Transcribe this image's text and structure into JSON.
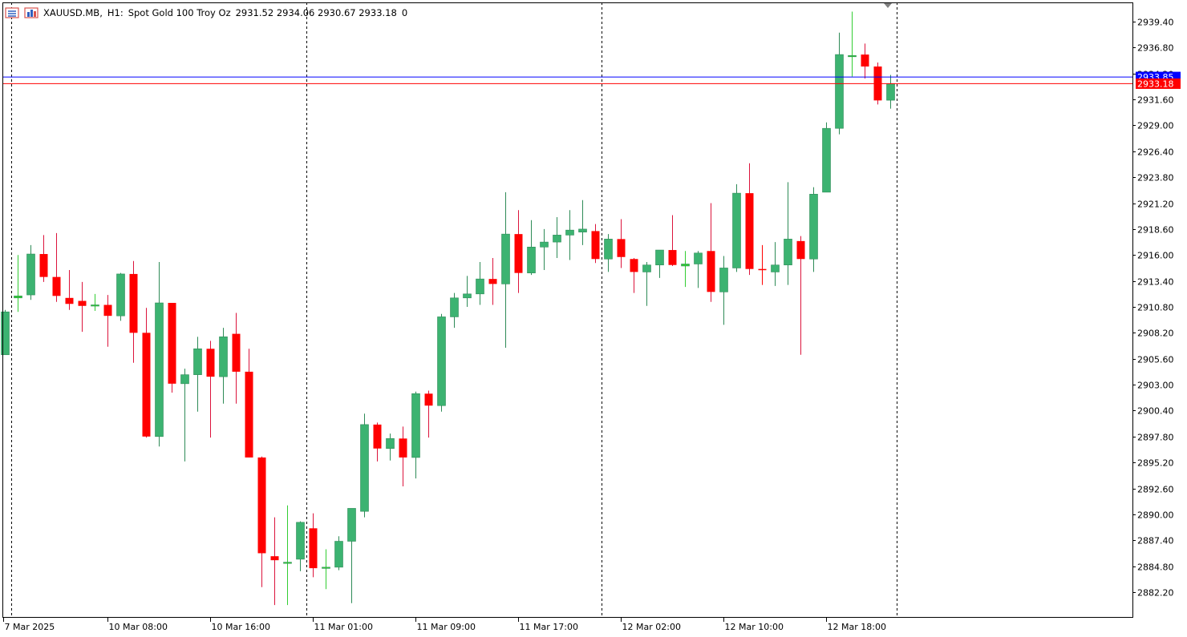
{
  "header": {
    "symbol": "XAUUSD.MB,",
    "timeframe": "H1:",
    "description": "Spot Gold 100 Troy Oz",
    "ohlc": "2931.52 2934.06 2930.67 2933.18",
    "volume": "0",
    "icons": [
      "chart-list-icon",
      "chart-stats-icon"
    ]
  },
  "colors": {
    "bull": "#3cb371",
    "bull_doji": "#32cd32",
    "bear": "#ff0000",
    "wick_bull": "#2e8b57",
    "wick_bear": "#dc143c",
    "bid_line": "#0000ff",
    "last_line": "#ff0000",
    "period_sep": "#000000",
    "axis": "#000000"
  },
  "price_tags": {
    "ask": "2933.85",
    "bid": "2933.18"
  },
  "chart_data": {
    "type": "candlestick",
    "y_range": [
      2880.0,
      2941.0
    ],
    "y_ticks": [
      "2939.40",
      "2936.80",
      "2934.20",
      "2931.60",
      "2929.00",
      "2926.40",
      "2923.80",
      "2921.20",
      "2918.60",
      "2916.00",
      "2913.40",
      "2910.80",
      "2908.20",
      "2905.60",
      "2903.00",
      "2900.40",
      "2897.80",
      "2895.20",
      "2892.60",
      "2890.00",
      "2887.40",
      "2884.80",
      "2882.20"
    ],
    "x_labels": [
      {
        "text": "7 Mar 2025",
        "bar": -0.5
      },
      {
        "text": "10 Mar 08:00",
        "bar": 8
      },
      {
        "text": "10 Mar 16:00",
        "bar": 16
      },
      {
        "text": "11 Mar 01:00",
        "bar": 24
      },
      {
        "text": "11 Mar 09:00",
        "bar": 32
      },
      {
        "text": "11 Mar 17:00",
        "bar": 40
      },
      {
        "text": "12 Mar 02:00",
        "bar": 48
      },
      {
        "text": "12 Mar 10:00",
        "bar": 56
      },
      {
        "text": "12 Mar 18:00",
        "bar": 64
      }
    ],
    "day_separators_bar": [
      0.5,
      23.5,
      46.5,
      69.5
    ],
    "candles": [
      {
        "o": 2906.0,
        "h": 2910.5,
        "l": 2906.0,
        "c": 2910.3
      },
      {
        "o": 2911.7,
        "h": 2916.0,
        "l": 2910.3,
        "c": 2911.9
      },
      {
        "o": 2912.0,
        "h": 2917.0,
        "l": 2911.5,
        "c": 2916.1
      },
      {
        "o": 2916.1,
        "h": 2918.0,
        "l": 2913.3,
        "c": 2913.8
      },
      {
        "o": 2913.8,
        "h": 2918.2,
        "l": 2911.3,
        "c": 2911.9
      },
      {
        "o": 2911.7,
        "h": 2914.5,
        "l": 2910.5,
        "c": 2911.1
      },
      {
        "o": 2911.4,
        "h": 2913.3,
        "l": 2908.3,
        "c": 2910.9
      },
      {
        "o": 2910.9,
        "h": 2912.1,
        "l": 2910.4,
        "c": 2911.0
      },
      {
        "o": 2911.0,
        "h": 2912.0,
        "l": 2906.8,
        "c": 2909.9
      },
      {
        "o": 2909.9,
        "h": 2914.2,
        "l": 2909.4,
        "c": 2914.1
      },
      {
        "o": 2914.1,
        "h": 2915.4,
        "l": 2905.2,
        "c": 2908.2
      },
      {
        "o": 2908.2,
        "h": 2910.7,
        "l": 2897.7,
        "c": 2897.8
      },
      {
        "o": 2897.8,
        "h": 2915.3,
        "l": 2896.8,
        "c": 2911.2
      },
      {
        "o": 2911.2,
        "h": 2911.2,
        "l": 2902.2,
        "c": 2903.1
      },
      {
        "o": 2903.1,
        "h": 2904.6,
        "l": 2895.3,
        "c": 2904.0
      },
      {
        "o": 2904.0,
        "h": 2907.8,
        "l": 2900.3,
        "c": 2906.6
      },
      {
        "o": 2906.6,
        "h": 2907.4,
        "l": 2897.7,
        "c": 2903.8
      },
      {
        "o": 2903.8,
        "h": 2908.7,
        "l": 2901.1,
        "c": 2907.8
      },
      {
        "o": 2908.1,
        "h": 2910.2,
        "l": 2901.1,
        "c": 2904.3
      },
      {
        "o": 2904.3,
        "h": 2906.6,
        "l": 2895.7,
        "c": 2895.7
      },
      {
        "o": 2895.7,
        "h": 2895.8,
        "l": 2882.7,
        "c": 2886.1
      },
      {
        "o": 2885.8,
        "h": 2889.7,
        "l": 2880.9,
        "c": 2885.4
      },
      {
        "o": 2885.1,
        "h": 2890.9,
        "l": 2880.9,
        "c": 2885.2
      },
      {
        "o": 2885.5,
        "h": 2889.3,
        "l": 2884.3,
        "c": 2889.2
      },
      {
        "o": 2888.6,
        "h": 2890.1,
        "l": 2883.7,
        "c": 2884.6
      },
      {
        "o": 2884.6,
        "h": 2886.5,
        "l": 2882.5,
        "c": 2884.7
      },
      {
        "o": 2884.7,
        "h": 2887.8,
        "l": 2884.4,
        "c": 2887.3
      },
      {
        "o": 2887.3,
        "h": 2890.3,
        "l": 2881.1,
        "c": 2890.6
      },
      {
        "o": 2890.3,
        "h": 2900.1,
        "l": 2889.7,
        "c": 2899.0
      },
      {
        "o": 2899.0,
        "h": 2899.2,
        "l": 2895.3,
        "c": 2896.6
      },
      {
        "o": 2896.6,
        "h": 2898.1,
        "l": 2895.4,
        "c": 2897.6
      },
      {
        "o": 2897.6,
        "h": 2898.8,
        "l": 2892.8,
        "c": 2895.7
      },
      {
        "o": 2895.7,
        "h": 2902.3,
        "l": 2893.6,
        "c": 2902.1
      },
      {
        "o": 2902.1,
        "h": 2902.4,
        "l": 2897.7,
        "c": 2900.9
      },
      {
        "o": 2900.9,
        "h": 2910.1,
        "l": 2900.3,
        "c": 2909.8
      },
      {
        "o": 2909.8,
        "h": 2912.2,
        "l": 2908.7,
        "c": 2911.7
      },
      {
        "o": 2911.7,
        "h": 2913.9,
        "l": 2910.8,
        "c": 2912.1
      },
      {
        "o": 2912.1,
        "h": 2915.3,
        "l": 2911.0,
        "c": 2913.6
      },
      {
        "o": 2913.6,
        "h": 2915.7,
        "l": 2911.0,
        "c": 2913.1
      },
      {
        "o": 2913.1,
        "h": 2922.3,
        "l": 2906.7,
        "c": 2918.1
      },
      {
        "o": 2918.1,
        "h": 2920.5,
        "l": 2912.2,
        "c": 2914.2
      },
      {
        "o": 2914.2,
        "h": 2919.5,
        "l": 2914.0,
        "c": 2916.8
      },
      {
        "o": 2916.8,
        "h": 2918.6,
        "l": 2914.5,
        "c": 2917.3
      },
      {
        "o": 2917.3,
        "h": 2919.8,
        "l": 2915.7,
        "c": 2918.0
      },
      {
        "o": 2918.0,
        "h": 2920.5,
        "l": 2915.5,
        "c": 2918.5
      },
      {
        "o": 2918.3,
        "h": 2921.5,
        "l": 2917.0,
        "c": 2918.6
      },
      {
        "o": 2918.4,
        "h": 2919.1,
        "l": 2915.2,
        "c": 2915.6
      },
      {
        "o": 2915.6,
        "h": 2918.1,
        "l": 2914.3,
        "c": 2917.6
      },
      {
        "o": 2917.6,
        "h": 2919.6,
        "l": 2914.7,
        "c": 2915.8
      },
      {
        "o": 2915.6,
        "h": 2915.7,
        "l": 2912.2,
        "c": 2914.3
      },
      {
        "o": 2914.3,
        "h": 2915.3,
        "l": 2910.9,
        "c": 2915.0
      },
      {
        "o": 2915.0,
        "h": 2916.0,
        "l": 2913.7,
        "c": 2916.5
      },
      {
        "o": 2916.5,
        "h": 2920.0,
        "l": 2914.9,
        "c": 2915.0
      },
      {
        "o": 2914.9,
        "h": 2916.4,
        "l": 2912.8,
        "c": 2915.1
      },
      {
        "o": 2915.1,
        "h": 2916.4,
        "l": 2912.7,
        "c": 2916.2
      },
      {
        "o": 2916.4,
        "h": 2921.2,
        "l": 2911.3,
        "c": 2912.3
      },
      {
        "o": 2912.3,
        "h": 2915.9,
        "l": 2909.0,
        "c": 2914.7
      },
      {
        "o": 2914.7,
        "h": 2923.1,
        "l": 2914.3,
        "c": 2922.2
      },
      {
        "o": 2922.2,
        "h": 2925.2,
        "l": 2914.0,
        "c": 2914.6
      },
      {
        "o": 2914.6,
        "h": 2917.0,
        "l": 2913.0,
        "c": 2914.5
      },
      {
        "o": 2914.3,
        "h": 2917.3,
        "l": 2912.9,
        "c": 2915.0
      },
      {
        "o": 2915.0,
        "h": 2923.3,
        "l": 2913.0,
        "c": 2917.6
      },
      {
        "o": 2917.4,
        "h": 2917.9,
        "l": 2906.0,
        "c": 2915.6
      },
      {
        "o": 2915.6,
        "h": 2922.8,
        "l": 2914.3,
        "c": 2922.1
      },
      {
        "o": 2922.3,
        "h": 2929.3,
        "l": 2922.3,
        "c": 2928.7
      },
      {
        "o": 2928.7,
        "h": 2938.3,
        "l": 2928.1,
        "c": 2936.1
      },
      {
        "o": 2935.9,
        "h": 2940.4,
        "l": 2933.9,
        "c": 2936.0
      },
      {
        "o": 2936.1,
        "h": 2937.2,
        "l": 2933.7,
        "c": 2934.9
      },
      {
        "o": 2934.9,
        "h": 2935.3,
        "l": 2931.1,
        "c": 2931.5
      },
      {
        "o": 2931.52,
        "h": 2934.06,
        "l": 2930.67,
        "c": 2933.18
      }
    ]
  }
}
